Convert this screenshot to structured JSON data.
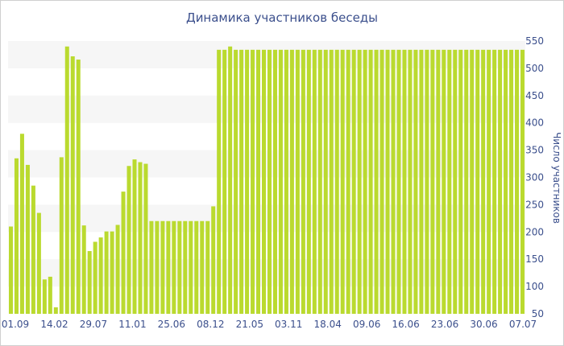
{
  "chart_data": {
    "type": "bar",
    "title": "Динамика участников беседы",
    "ylabel": "Число участников",
    "xlabel": "",
    "ylim": [
      50,
      550
    ],
    "yticks": [
      50,
      100,
      150,
      200,
      250,
      300,
      350,
      400,
      450,
      500,
      550
    ],
    "grid": "horizontal bands",
    "x_tick_labels": [
      "01.09",
      "14.02",
      "29.07",
      "11.01",
      "25.06",
      "08.12",
      "21.05",
      "03.11",
      "18.04",
      "09.06",
      "16.06",
      "23.06",
      "30.06",
      "07.07"
    ],
    "values": [
      210,
      335,
      380,
      323,
      285,
      235,
      113,
      118,
      62,
      337,
      540,
      522,
      516,
      212,
      165,
      182,
      190,
      201,
      201,
      213,
      274,
      321,
      333,
      328,
      325,
      220,
      220,
      220,
      220,
      220,
      220,
      220,
      220,
      220,
      220,
      220,
      247,
      534,
      534,
      540,
      534,
      534,
      534,
      534,
      534,
      534,
      534,
      534,
      534,
      534,
      534,
      534,
      534,
      534,
      534,
      534,
      534,
      534,
      534,
      534,
      534,
      534,
      534,
      534,
      534,
      534,
      534,
      534,
      534,
      534,
      534,
      534,
      534,
      534,
      534,
      534,
      534,
      534,
      534,
      534,
      534,
      534,
      534,
      534,
      534,
      534,
      534,
      534,
      534,
      534,
      534,
      534
    ],
    "bar_color": "#bada2f",
    "band_color": "#f6f6f6",
    "axis_text_color": "#3b4f8c"
  }
}
